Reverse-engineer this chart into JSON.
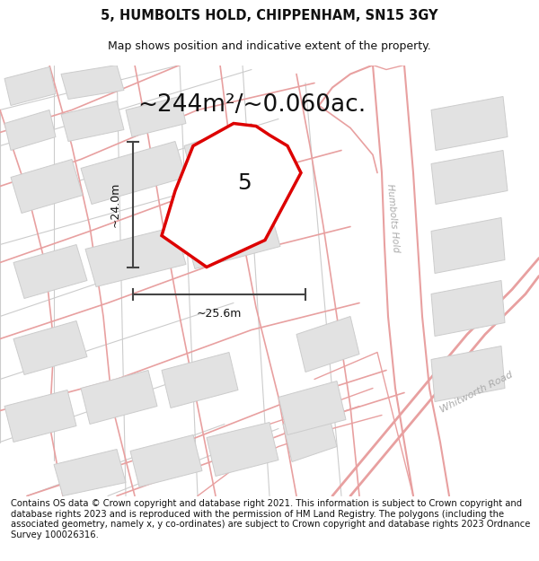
{
  "title_line1": "5, HUMBOLTS HOLD, CHIPPENHAM, SN15 3GY",
  "title_line2": "Map shows position and indicative extent of the property.",
  "area_text": "~244m²/~0.060ac.",
  "property_number": "5",
  "dim_height": "~24.0m",
  "dim_width": "~25.6m",
  "road_label1": "Humbolts Hold",
  "road_label2": "Whitworth Road",
  "footer_text": "Contains OS data © Crown copyright and database right 2021. This information is subject to Crown copyright and database rights 2023 and is reproduced with the permission of HM Land Registry. The polygons (including the associated geometry, namely x, y co-ordinates) are subject to Crown copyright and database rights 2023 Ordnance Survey 100026316.",
  "bg_color": "#f7f7f7",
  "plot_fill": "#ffffff",
  "plot_edge": "#dd0000",
  "road_line_color": "#e8a0a0",
  "road_line_color2": "#cccccc",
  "building_fill": "#e2e2e2",
  "building_edge": "#cccccc",
  "dim_line_color": "#444444",
  "title_fontsize": 10.5,
  "subtitle_fontsize": 9,
  "area_fontsize": 19,
  "number_fontsize": 18,
  "footer_fontsize": 7.2,
  "road_label_color": "#aaaaaa"
}
